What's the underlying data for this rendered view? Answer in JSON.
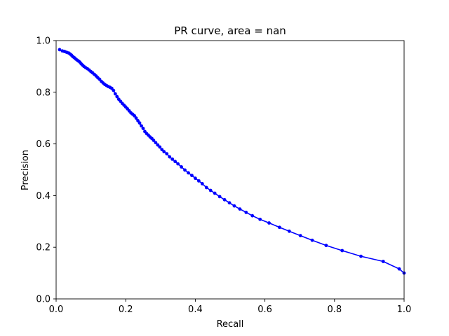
{
  "chart_data": {
    "type": "line",
    "title": "PR curve, area = nan",
    "xlabel": "Recall",
    "ylabel": "Precision",
    "xlim": [
      0,
      1
    ],
    "ylim": [
      0,
      1
    ],
    "xticks": [
      "0.0",
      "0.2",
      "0.4",
      "0.6",
      "0.8",
      "1.0"
    ],
    "yticks": [
      "0.0",
      "0.2",
      "0.4",
      "0.6",
      "0.8",
      "1.0"
    ],
    "grid": false,
    "marker": "circle",
    "series_color": "#0000ff",
    "series": [
      {
        "x": [
          0.01,
          0.018,
          0.024,
          0.03,
          0.036,
          0.04,
          0.044,
          0.048,
          0.052,
          0.056,
          0.06,
          0.064,
          0.068,
          0.072,
          0.076,
          0.08,
          0.085,
          0.09,
          0.095,
          0.1,
          0.105,
          0.11,
          0.115,
          0.12,
          0.125,
          0.13,
          0.135,
          0.14,
          0.145,
          0.15,
          0.155,
          0.16,
          0.165,
          0.17,
          0.175,
          0.18,
          0.185,
          0.19,
          0.195,
          0.2,
          0.205,
          0.21,
          0.215,
          0.22,
          0.225,
          0.23,
          0.235,
          0.24,
          0.245,
          0.25,
          0.255,
          0.26,
          0.265,
          0.27,
          0.275,
          0.28,
          0.286,
          0.292,
          0.298,
          0.304,
          0.31,
          0.318,
          0.326,
          0.334,
          0.342,
          0.35,
          0.36,
          0.37,
          0.38,
          0.39,
          0.4,
          0.41,
          0.42,
          0.432,
          0.444,
          0.456,
          0.47,
          0.484,
          0.498,
          0.512,
          0.528,
          0.546,
          0.564,
          0.586,
          0.612,
          0.642,
          0.67,
          0.702,
          0.736,
          0.776,
          0.822,
          0.876,
          0.94,
          0.986,
          1.0
        ],
        "y": [
          0.965,
          0.96,
          0.958,
          0.955,
          0.952,
          0.948,
          0.944,
          0.938,
          0.934,
          0.929,
          0.925,
          0.921,
          0.917,
          0.91,
          0.905,
          0.9,
          0.895,
          0.891,
          0.886,
          0.88,
          0.875,
          0.869,
          0.863,
          0.856,
          0.85,
          0.842,
          0.836,
          0.83,
          0.826,
          0.822,
          0.819,
          0.815,
          0.807,
          0.794,
          0.783,
          0.773,
          0.765,
          0.757,
          0.75,
          0.743,
          0.736,
          0.728,
          0.72,
          0.715,
          0.709,
          0.7,
          0.69,
          0.681,
          0.67,
          0.66,
          0.648,
          0.64,
          0.634,
          0.627,
          0.621,
          0.614,
          0.605,
          0.596,
          0.588,
          0.578,
          0.57,
          0.562,
          0.55,
          0.541,
          0.532,
          0.523,
          0.511,
          0.499,
          0.488,
          0.478,
          0.467,
          0.457,
          0.446,
          0.431,
          0.42,
          0.409,
          0.396,
          0.384,
          0.372,
          0.36,
          0.348,
          0.335,
          0.322,
          0.308,
          0.294,
          0.277,
          0.262,
          0.245,
          0.227,
          0.207,
          0.187,
          0.165,
          0.145,
          0.116,
          0.1
        ]
      }
    ]
  }
}
